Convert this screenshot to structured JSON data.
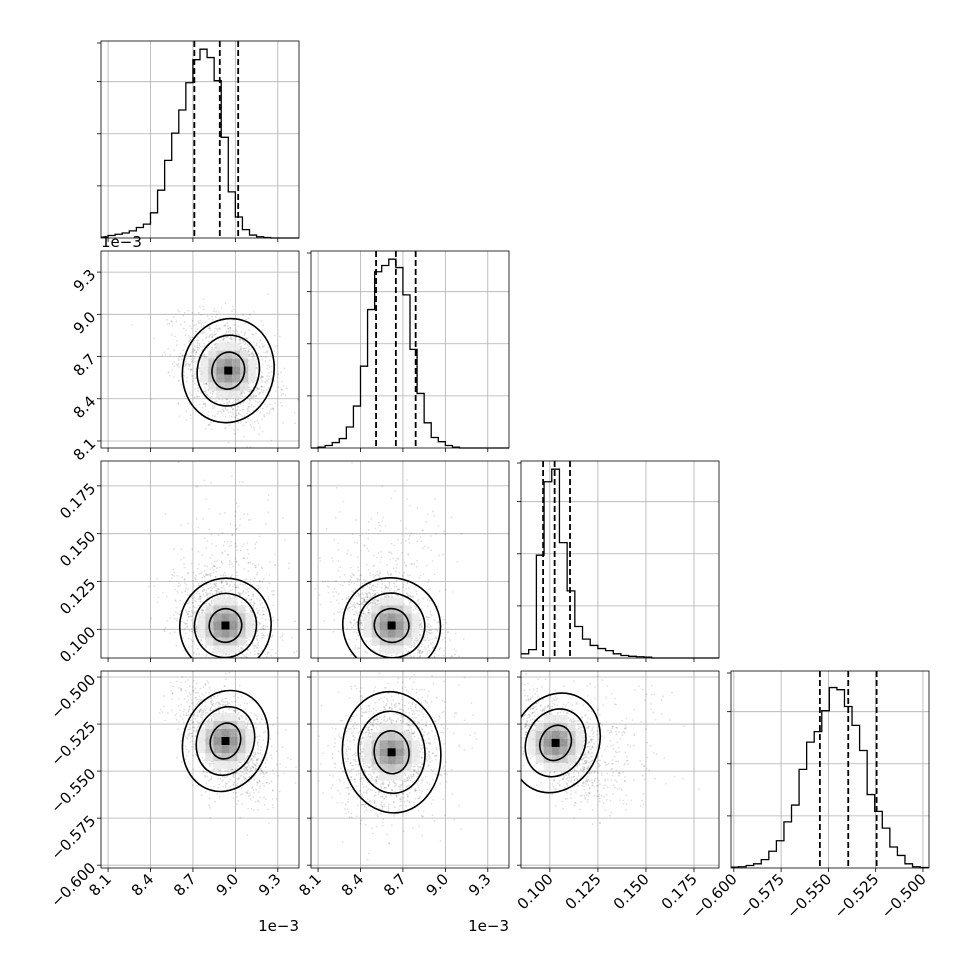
{
  "chart_data": {
    "type": "corner",
    "parameters": [
      {
        "offset_label": "1e−3",
        "range": [
          8.05,
          9.45
        ],
        "ticks": [
          8.1,
          8.4,
          8.7,
          9.0,
          9.3
        ],
        "tick_labels": [
          "8.1",
          "8.4",
          "8.7",
          "9.0",
          "9.3"
        ]
      },
      {
        "offset_label": "1e−3",
        "range": [
          8.05,
          9.45
        ],
        "ticks": [
          8.1,
          8.4,
          8.7,
          9.0,
          9.3
        ],
        "tick_labels": [
          "8.1",
          "8.4",
          "8.7",
          "9.0",
          "9.3"
        ]
      },
      {
        "offset_label": "",
        "range": [
          0.085,
          0.188
        ],
        "ticks": [
          0.1,
          0.125,
          0.15,
          0.175
        ],
        "tick_labels": [
          "0.100",
          "0.125",
          "0.150",
          "0.175"
        ]
      },
      {
        "offset_label": "",
        "range": [
          -0.6015,
          -0.4968
        ],
        "ticks": [
          -0.6,
          -0.575,
          -0.55,
          -0.525,
          -0.5
        ],
        "tick_labels": [
          "−0.600",
          "−0.575",
          "−0.550",
          "−0.525",
          "−0.500"
        ]
      }
    ],
    "histograms": [
      {
        "bin_edges": [
          8.05,
          8.1,
          8.15,
          8.2,
          8.25,
          8.3,
          8.35,
          8.4,
          8.45,
          8.5,
          8.55,
          8.6,
          8.65,
          8.7,
          8.75,
          8.8,
          8.85,
          8.9,
          8.95,
          9.0,
          9.05,
          9.1,
          9.15,
          9.2,
          9.25,
          9.3,
          9.35,
          9.4,
          9.45
        ],
        "counts": [
          0.004,
          0.012,
          0.018,
          0.024,
          0.034,
          0.05,
          0.066,
          0.12,
          0.228,
          0.37,
          0.5,
          0.61,
          0.74,
          0.85,
          0.9,
          0.86,
          0.75,
          0.48,
          0.22,
          0.1,
          0.04,
          0.014,
          0.006,
          0.002,
          0,
          0,
          0,
          0
        ],
        "quantiles": [
          8.71,
          8.89,
          9.02
        ]
      },
      {
        "bin_edges": [
          8.05,
          8.1,
          8.15,
          8.2,
          8.25,
          8.3,
          8.35,
          8.4,
          8.45,
          8.5,
          8.55,
          8.6,
          8.65,
          8.7,
          8.75,
          8.8,
          8.85,
          8.9,
          8.95,
          9.0,
          9.05,
          9.1,
          9.15,
          9.2,
          9.25,
          9.3,
          9.35,
          9.4,
          9.45
        ],
        "counts": [
          0,
          0.004,
          0.012,
          0.026,
          0.045,
          0.1,
          0.2,
          0.39,
          0.66,
          0.84,
          0.87,
          0.9,
          0.86,
          0.73,
          0.47,
          0.26,
          0.12,
          0.05,
          0.03,
          0.012,
          0.004,
          0,
          0,
          0,
          0,
          0,
          0,
          0
        ],
        "quantiles": [
          8.51,
          8.65,
          8.79
        ]
      },
      {
        "bin_edges": [
          0.085,
          0.089,
          0.093,
          0.097,
          0.101,
          0.105,
          0.109,
          0.113,
          0.117,
          0.121,
          0.125,
          0.129,
          0.133,
          0.137,
          0.141,
          0.145,
          0.149,
          0.153,
          0.157,
          0.161,
          0.165,
          0.169,
          0.173,
          0.177,
          0.181,
          0.185,
          0.188
        ],
        "counts": [
          0.02,
          0.04,
          0.49,
          0.84,
          0.9,
          0.55,
          0.32,
          0.15,
          0.09,
          0.06,
          0.045,
          0.035,
          0.02,
          0.012,
          0.008,
          0.006,
          0.004,
          0,
          0,
          0,
          0,
          0,
          0,
          0,
          0,
          0
        ],
        "quantiles": [
          0.0965,
          0.1025,
          0.1105
        ]
      },
      {
        "bin_edges": [
          -0.6015,
          -0.5975,
          -0.5935,
          -0.5895,
          -0.5855,
          -0.5815,
          -0.5775,
          -0.5735,
          -0.5695,
          -0.5655,
          -0.5615,
          -0.5575,
          -0.5535,
          -0.5495,
          -0.5455,
          -0.5415,
          -0.5375,
          -0.5335,
          -0.5295,
          -0.5255,
          -0.5215,
          -0.5175,
          -0.5135,
          -0.5095,
          -0.5055,
          -0.5015,
          -0.4968
        ],
        "counts": [
          0.004,
          0.006,
          0.012,
          0.02,
          0.04,
          0.08,
          0.13,
          0.22,
          0.3,
          0.47,
          0.6,
          0.65,
          0.75,
          0.86,
          0.85,
          0.77,
          0.68,
          0.56,
          0.35,
          0.27,
          0.19,
          0.1,
          0.06,
          0.02,
          0.006,
          0.002
        ],
        "quantiles": [
          -0.5545,
          -0.5395,
          -0.5245
        ]
      }
    ],
    "scatter_panels": [
      {
        "row": 1,
        "col": 0,
        "center": [
          8.95,
          8.6
        ],
        "spread": [
          0.13,
          0.15
        ],
        "correlation": -0.3
      },
      {
        "row": 2,
        "col": 0,
        "center": [
          8.93,
          0.102
        ],
        "spread": [
          0.13,
          0.01
        ],
        "correlation": -0.35
      },
      {
        "row": 2,
        "col": 1,
        "center": [
          8.62,
          0.102
        ],
        "spread": [
          0.14,
          0.01
        ],
        "correlation": -0.55
      },
      {
        "row": 3,
        "col": 0,
        "center": [
          8.93,
          -0.534
        ],
        "spread": [
          0.12,
          0.011
        ],
        "correlation": -0.45
      },
      {
        "row": 3,
        "col": 1,
        "center": [
          8.62,
          -0.54
        ],
        "spread": [
          0.14,
          0.013
        ],
        "correlation": 0.15
      },
      {
        "row": 3,
        "col": 2,
        "center": [
          0.103,
          -0.535
        ],
        "spread": [
          0.009,
          0.011
        ],
        "correlation": -0.65
      }
    ],
    "grid": true,
    "contour_levels": 3
  }
}
